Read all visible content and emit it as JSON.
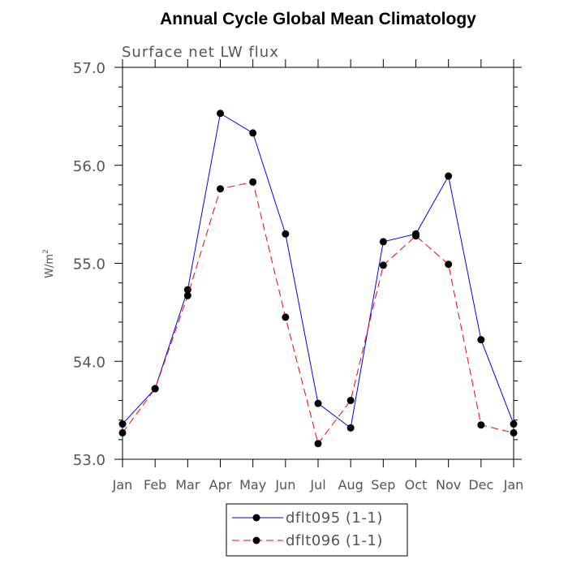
{
  "chart_data": {
    "type": "line",
    "title": "Annual Cycle Global Mean Climatology",
    "subtitle": "Surface net LW flux",
    "ylabel": "W/m",
    "ylabel_sup": "2",
    "xlabel": "",
    "categories": [
      "Jan",
      "Feb",
      "Mar",
      "Apr",
      "May",
      "Jun",
      "Jul",
      "Aug",
      "Sep",
      "Oct",
      "Nov",
      "Dec",
      "Jan"
    ],
    "ylim": [
      53.0,
      57.0
    ],
    "yticks": [
      53.0,
      54.0,
      55.0,
      56.0,
      57.0
    ],
    "ytick_labels": [
      "53.0",
      "54.0",
      "55.0",
      "56.0",
      "57.0"
    ],
    "series": [
      {
        "name": "dflt095 (1-1)",
        "color": "#0000ff",
        "dash": "solid",
        "values": [
          53.36,
          53.72,
          54.73,
          56.53,
          56.33,
          55.3,
          53.57,
          53.32,
          55.22,
          55.3,
          55.89,
          54.22,
          53.36
        ]
      },
      {
        "name": "dflt096 (1-1)",
        "color": "#ff0000",
        "dash": "dashed",
        "values": [
          53.27,
          53.72,
          54.67,
          55.76,
          55.83,
          54.45,
          53.16,
          53.6,
          54.98,
          55.28,
          54.99,
          53.35,
          53.27
        ]
      }
    ],
    "legend_position": "bottom-center",
    "grid": false
  }
}
